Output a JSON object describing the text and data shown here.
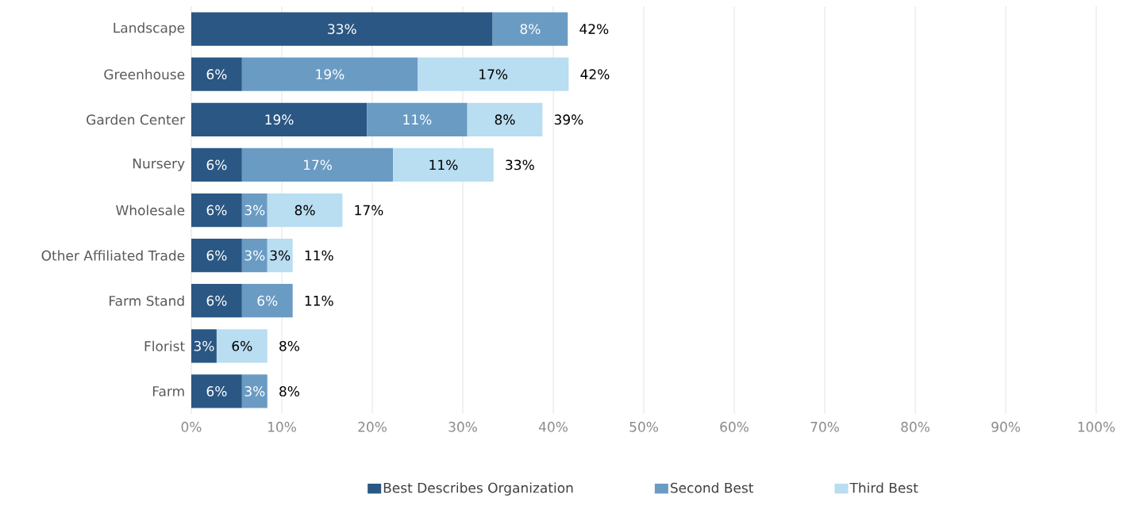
{
  "chart_data": {
    "type": "bar",
    "orientation": "horizontal",
    "stacked": true,
    "categories": [
      "Landscape",
      "Greenhouse",
      "Garden Center",
      "Nursery",
      "Wholesale",
      "Other Affiliated Trade",
      "Farm Stand",
      "Florist",
      "Farm"
    ],
    "series": [
      {
        "name": "Best Describes Organization",
        "color": "#2a5783",
        "values": [
          33.3,
          5.6,
          19.4,
          5.6,
          5.6,
          5.6,
          5.6,
          2.8,
          5.6
        ],
        "value_labels": [
          "33%",
          "6%",
          "19%",
          "6%",
          "6%",
          "6%",
          "6%",
          "3%",
          "6%"
        ]
      },
      {
        "name": "Second Best",
        "color": "#6a9bc3",
        "values": [
          8.3,
          19.4,
          11.1,
          16.7,
          2.8,
          2.8,
          5.6,
          null,
          2.8
        ],
        "value_labels": [
          "8%",
          "19%",
          "11%",
          "17%",
          "3%",
          "3%",
          "6%",
          null,
          "3%"
        ]
      },
      {
        "name": "Third Best",
        "color": "#b9ddf1",
        "values": [
          null,
          16.7,
          8.3,
          11.1,
          8.3,
          2.8,
          null,
          5.6,
          null
        ],
        "value_labels": [
          null,
          "17%",
          "8%",
          "11%",
          "8%",
          "3%",
          null,
          "6%",
          null
        ]
      }
    ],
    "totals": [
      "42%",
      "42%",
      "39%",
      "33%",
      "17%",
      "11%",
      "11%",
      "8%",
      "8%"
    ],
    "xlim": [
      0,
      100
    ],
    "xticks": [
      {
        "value": 0,
        "label": "0%"
      },
      {
        "value": 10,
        "label": "10%"
      },
      {
        "value": 20,
        "label": "20%"
      },
      {
        "value": 30,
        "label": "30%"
      },
      {
        "value": 40,
        "label": "40%"
      },
      {
        "value": 50,
        "label": "50%"
      },
      {
        "value": 60,
        "label": "60%"
      },
      {
        "value": 70,
        "label": "70%"
      },
      {
        "value": 80,
        "label": "80%"
      },
      {
        "value": 90,
        "label": "90%"
      },
      {
        "value": 100,
        "label": "100%"
      }
    ],
    "grid": "x",
    "legend": "bottom"
  }
}
